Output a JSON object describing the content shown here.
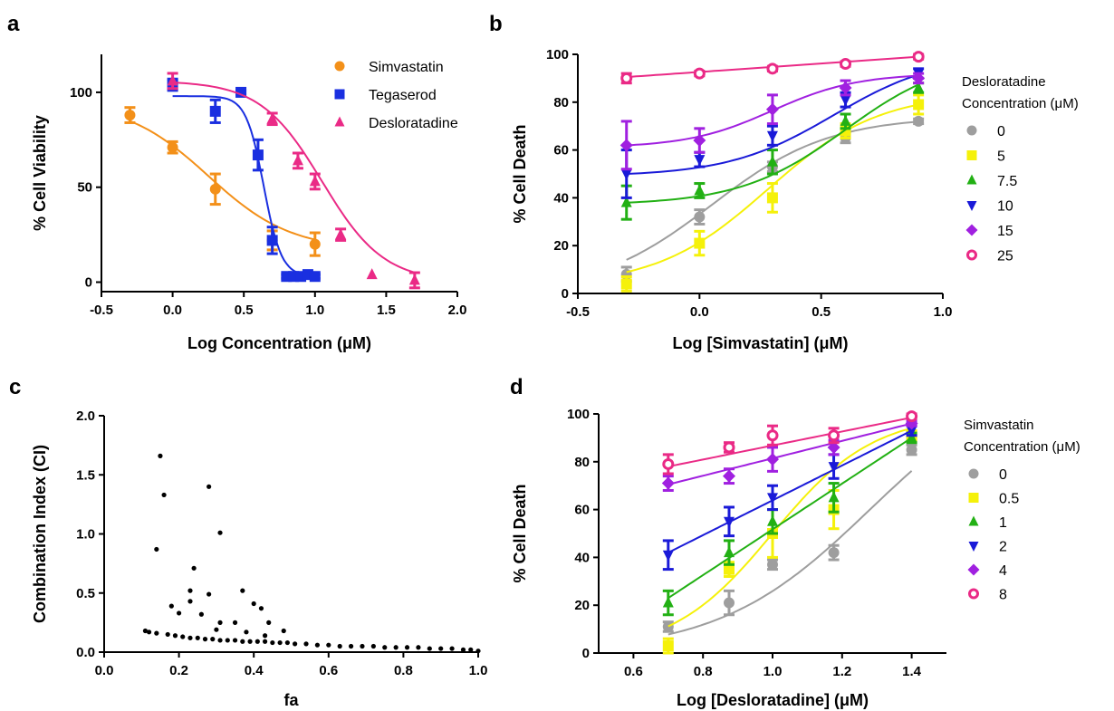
{
  "chart_data": [
    {
      "panel": "a",
      "type": "scatter",
      "xlabel": "Log Concentration (μM)",
      "ylabel": "% Cell Viability",
      "xlim": [
        -0.5,
        2.0
      ],
      "ylim": [
        -5,
        120
      ],
      "xticks": [
        "-0.5",
        "0.0",
        "0.5",
        "1.0",
        "1.5",
        "2.0"
      ],
      "yticks": [
        "0",
        "50",
        "100"
      ],
      "legend_position": "top-right",
      "series": [
        {
          "name": "Simvastatin",
          "color": "#f39019",
          "marker": "circle",
          "x": [
            -0.3,
            0.0,
            0.3,
            0.7,
            1.0
          ],
          "y": [
            88,
            71,
            49,
            22,
            20
          ],
          "err": [
            4,
            3,
            8,
            5,
            6
          ],
          "fit": {
            "bottom": 17,
            "top": 95,
            "ec50": 0.25,
            "hill": -1.5,
            "x0": -0.3,
            "x1": 1.0
          }
        },
        {
          "name": "Tegaserod",
          "color": "#1a2fe0",
          "marker": "square",
          "x": [
            0.0,
            0.3,
            0.48,
            0.6,
            0.7,
            0.8,
            0.85,
            0.9,
            0.95,
            1.0
          ],
          "y": [
            104,
            90,
            100,
            67,
            22,
            3,
            3,
            3,
            4,
            3
          ],
          "err": [
            3,
            6,
            1,
            8,
            7,
            1,
            1,
            1,
            1,
            1
          ],
          "fit": {
            "bottom": 3,
            "top": 98,
            "ec50": 0.64,
            "hill": -7,
            "x0": 0.0,
            "x1": 1.0
          }
        },
        {
          "name": "Desloratadine",
          "color": "#ea2a86",
          "marker": "triangle",
          "x": [
            0.0,
            0.7,
            0.88,
            1.0,
            1.18,
            1.4,
            1.7
          ],
          "y": [
            106,
            86,
            64,
            53,
            25,
            4,
            1
          ],
          "err": [
            4,
            3,
            4,
            4,
            3,
            0,
            4
          ],
          "fit": {
            "bottom": 0,
            "top": 106,
            "ec50": 1.05,
            "hill": -2,
            "x0": 0.0,
            "x1": 1.7
          }
        }
      ]
    },
    {
      "panel": "b",
      "type": "scatter",
      "xlabel": "Log [Simvastatin] (μM)",
      "ylabel": "% Cell Death",
      "xlim": [
        -0.5,
        1.0
      ],
      "ylim": [
        0,
        100
      ],
      "xticks": [
        "-0.5",
        "0.0",
        "0.5",
        "1.0"
      ],
      "yticks": [
        "0",
        "20",
        "40",
        "60",
        "80",
        "100"
      ],
      "legend_title": [
        "Desloratadine",
        "Concentration (μM)"
      ],
      "legend_position": "right",
      "series": [
        {
          "name": "0",
          "color": "#9e9e9e",
          "marker": "circle",
          "x": [
            -0.3,
            0.0,
            0.3,
            0.6,
            0.9
          ],
          "y": [
            8,
            32,
            53,
            65,
            72
          ],
          "err": [
            3,
            3,
            2,
            2,
            1
          ],
          "fit": {
            "bottom": 0,
            "top": 74,
            "ec50": 0.05,
            "hill": 1.8,
            "x0": -0.3,
            "x1": 0.9
          }
        },
        {
          "name": "5",
          "color": "#f5f10a",
          "marker": "square",
          "x": [
            -0.3,
            0.0,
            0.3,
            0.6,
            0.9
          ],
          "y": [
            4,
            21,
            40,
            68,
            79
          ],
          "err": [
            3,
            5,
            6,
            3,
            4
          ],
          "fit": {
            "bottom": 3,
            "top": 84,
            "ec50": 0.28,
            "hill": 1.9,
            "x0": -0.3,
            "x1": 0.9
          }
        },
        {
          "name": "7.5",
          "color": "#22b014",
          "marker": "triangle",
          "x": [
            -0.3,
            0.0,
            0.3,
            0.6,
            0.9
          ],
          "y": [
            38,
            43,
            55,
            72,
            86
          ],
          "err": [
            7,
            3,
            5,
            3,
            2
          ],
          "fit": {
            "bottom": 37,
            "top": 100,
            "ec50": 0.6,
            "hill": 2,
            "x0": -0.3,
            "x1": 0.9
          }
        },
        {
          "name": "10",
          "color": "#1a1ad8",
          "marker": "triangle-down",
          "x": [
            -0.3,
            0.0,
            0.3,
            0.6,
            0.9
          ],
          "y": [
            50,
            56,
            66,
            81,
            92
          ],
          "err": [
            10,
            3,
            4,
            3,
            2
          ],
          "fit": {
            "bottom": 49,
            "top": 100,
            "ec50": 0.55,
            "hill": 2,
            "x0": -0.3,
            "x1": 0.9
          }
        },
        {
          "name": "15",
          "color": "#a020e0",
          "marker": "diamond",
          "x": [
            -0.3,
            0.0,
            0.3,
            0.6,
            0.9
          ],
          "y": [
            62,
            64,
            77,
            86,
            90
          ],
          "err": [
            10,
            5,
            6,
            3,
            2
          ],
          "fit": {
            "bottom": 61,
            "top": 92,
            "ec50": 0.3,
            "hill": 2.5,
            "x0": -0.3,
            "x1": 0.9
          }
        },
        {
          "name": "25",
          "color": "#ea2a86",
          "marker": "circle-open",
          "x": [
            -0.3,
            0.0,
            0.3,
            0.6,
            0.9
          ],
          "y": [
            90,
            92,
            94,
            96,
            99
          ],
          "err": [
            2,
            1,
            1,
            1,
            1
          ],
          "fit": {
            "linear": true,
            "x0": -0.3,
            "x1": 0.9,
            "y0": 90.5,
            "y1": 99
          }
        }
      ]
    },
    {
      "panel": "c",
      "type": "scatter",
      "xlabel": "fa",
      "ylabel": "Combination Index (CI)",
      "xlim": [
        0.0,
        1.0
      ],
      "ylim": [
        0.0,
        2.0
      ],
      "xticks": [
        "0.0",
        "0.2",
        "0.4",
        "0.6",
        "0.8",
        "1.0"
      ],
      "yticks": [
        "0.0",
        "0.5",
        "1.0",
        "1.5",
        "2.0"
      ],
      "series": [
        {
          "name": "",
          "color": "#000000",
          "marker": "dot",
          "x": [
            0.15,
            0.16,
            0.28,
            0.14,
            0.31,
            0.24,
            0.37,
            0.18,
            0.23,
            0.28,
            0.2,
            0.4,
            0.42,
            0.23,
            0.31,
            0.35,
            0.26,
            0.3,
            0.48,
            0.44,
            0.38,
            0.43,
            0.11,
            0.12,
            0.14,
            0.17,
            0.19,
            0.21,
            0.23,
            0.25,
            0.27,
            0.29,
            0.31,
            0.33,
            0.35,
            0.37,
            0.39,
            0.41,
            0.43,
            0.45,
            0.47,
            0.49,
            0.51,
            0.54,
            0.57,
            0.6,
            0.63,
            0.66,
            0.69,
            0.72,
            0.75,
            0.78,
            0.81,
            0.84,
            0.87,
            0.9,
            0.93,
            0.96,
            0.98,
            1.0
          ],
          "y": [
            1.66,
            1.33,
            1.4,
            0.87,
            1.01,
            0.71,
            0.52,
            0.39,
            0.52,
            0.49,
            0.33,
            0.41,
            0.37,
            0.43,
            0.25,
            0.25,
            0.32,
            0.19,
            0.18,
            0.25,
            0.17,
            0.14,
            0.18,
            0.17,
            0.16,
            0.15,
            0.14,
            0.13,
            0.12,
            0.12,
            0.11,
            0.11,
            0.1,
            0.1,
            0.1,
            0.09,
            0.09,
            0.09,
            0.09,
            0.08,
            0.08,
            0.08,
            0.07,
            0.07,
            0.06,
            0.06,
            0.05,
            0.05,
            0.05,
            0.05,
            0.04,
            0.04,
            0.04,
            0.04,
            0.03,
            0.03,
            0.03,
            0.02,
            0.02,
            0.01
          ]
        }
      ]
    },
    {
      "panel": "d",
      "type": "scatter",
      "xlabel": "Log [Desloratadine] (μM)",
      "ylabel": "% Cell Death",
      "xlim": [
        0.5,
        1.5
      ],
      "ylim": [
        0,
        100
      ],
      "xticks": [
        "0.6",
        "0.8",
        "1.0",
        "1.2",
        "1.4"
      ],
      "yticks": [
        "0",
        "20",
        "40",
        "60",
        "80",
        "100"
      ],
      "legend_title": [
        "Simvastatin",
        "Concentration (μM)"
      ],
      "legend_position": "right",
      "series": [
        {
          "name": "0",
          "color": "#9e9e9e",
          "marker": "circle",
          "x": [
            0.7,
            0.875,
            1.0,
            1.176,
            1.4
          ],
          "y": [
            11,
            21,
            37,
            42,
            85
          ],
          "err": [
            2,
            5,
            2,
            3,
            2
          ],
          "fit": {
            "bottom": 0,
            "top": 120,
            "ec50": 1.28,
            "hill": 2,
            "x0": 0.7,
            "x1": 1.4
          }
        },
        {
          "name": "0.5",
          "color": "#f5f10a",
          "marker": "square",
          "x": [
            0.7,
            0.875,
            1.0,
            1.176,
            1.4
          ],
          "y": [
            3,
            35,
            50,
            60,
            91
          ],
          "err": [
            3,
            3,
            10,
            8,
            2
          ],
          "fit": {
            "bottom": 0,
            "top": 100,
            "ec50": 1.0,
            "hill": 3,
            "x0": 0.7,
            "x1": 1.4
          }
        },
        {
          "name": "1",
          "color": "#22b014",
          "marker": "triangle",
          "x": [
            0.7,
            0.875,
            1.0,
            1.176,
            1.4
          ],
          "y": [
            21,
            42,
            55,
            65,
            90
          ],
          "err": [
            5,
            5,
            5,
            6,
            2
          ],
          "fit": {
            "linear": true,
            "x0": 0.7,
            "x1": 1.4,
            "y0": 23,
            "y1": 90
          }
        },
        {
          "name": "2",
          "color": "#1a1ad8",
          "marker": "triangle-down",
          "x": [
            0.7,
            0.875,
            1.0,
            1.176,
            1.4
          ],
          "y": [
            41,
            55,
            65,
            78,
            93
          ],
          "err": [
            6,
            6,
            5,
            5,
            2
          ],
          "fit": {
            "linear": true,
            "x0": 0.7,
            "x1": 1.4,
            "y0": 42,
            "y1": 93
          }
        },
        {
          "name": "4",
          "color": "#a020e0",
          "marker": "diamond",
          "x": [
            0.7,
            0.875,
            1.0,
            1.176,
            1.4
          ],
          "y": [
            71,
            74,
            81,
            86,
            96
          ],
          "err": [
            3,
            3,
            5,
            3,
            1
          ],
          "fit": {
            "linear": true,
            "x0": 0.7,
            "x1": 1.4,
            "y0": 70.5,
            "y1": 96
          }
        },
        {
          "name": "8",
          "color": "#ea2a86",
          "marker": "circle-open",
          "x": [
            0.7,
            0.875,
            1.0,
            1.176,
            1.4
          ],
          "y": [
            79,
            86,
            91,
            91,
            99
          ],
          "err": [
            4,
            2,
            4,
            3,
            1
          ],
          "fit": {
            "linear": true,
            "x0": 0.7,
            "x1": 1.4,
            "y0": 78,
            "y1": 98.5
          }
        }
      ]
    }
  ]
}
